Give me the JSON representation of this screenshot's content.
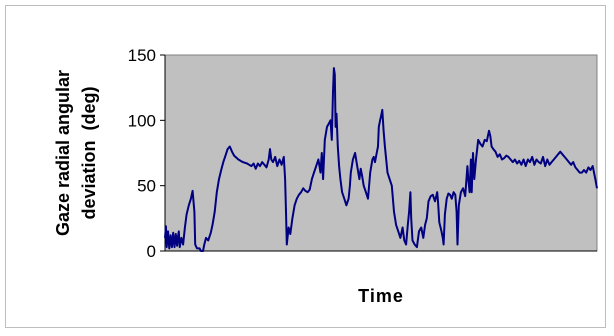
{
  "chart_data": {
    "type": "line",
    "title": "",
    "xlabel": "Time",
    "ylabel_line1": "Gaze radial angular",
    "ylabel_line2": "deviation  (deg)",
    "ylim": [
      0,
      150
    ],
    "yticks": [
      "0",
      "50",
      "100",
      "150"
    ],
    "grid": false,
    "legend": "none",
    "series": [
      {
        "color": "#000080",
        "x_range": [
          0,
          100
        ],
        "points": [
          [
            0.0,
            10
          ],
          [
            0.2,
            19
          ],
          [
            0.4,
            3
          ],
          [
            0.7,
            15
          ],
          [
            1.0,
            2
          ],
          [
            1.3,
            12
          ],
          [
            1.6,
            3
          ],
          [
            1.9,
            14
          ],
          [
            2.2,
            3
          ],
          [
            2.5,
            13
          ],
          [
            2.8,
            4
          ],
          [
            3.0,
            11
          ],
          [
            3.2,
            15
          ],
          [
            3.4,
            3
          ],
          [
            3.8,
            10
          ],
          [
            4.2,
            5
          ],
          [
            4.6,
            18
          ],
          [
            5.0,
            28
          ],
          [
            5.5,
            35
          ],
          [
            6.0,
            40
          ],
          [
            6.4,
            46
          ],
          [
            6.8,
            30
          ],
          [
            7.0,
            5
          ],
          [
            7.4,
            2
          ],
          [
            8.0,
            2
          ],
          [
            8.3,
            0
          ],
          [
            8.8,
            0
          ],
          [
            9.1,
            5
          ],
          [
            9.5,
            10
          ],
          [
            10.0,
            8
          ],
          [
            10.6,
            14
          ],
          [
            11.0,
            20
          ],
          [
            11.5,
            30
          ],
          [
            12.0,
            45
          ],
          [
            12.5,
            55
          ],
          [
            13.0,
            62
          ],
          [
            13.5,
            68
          ],
          [
            14.0,
            73
          ],
          [
            14.5,
            78
          ],
          [
            15.0,
            80
          ],
          [
            15.5,
            76
          ],
          [
            16.0,
            73
          ],
          [
            17.0,
            70
          ],
          [
            18.0,
            68
          ],
          [
            19.0,
            67
          ],
          [
            19.5,
            66
          ],
          [
            20.0,
            65
          ],
          [
            20.5,
            67
          ],
          [
            21.0,
            63
          ],
          [
            21.5,
            67
          ],
          [
            22.0,
            65
          ],
          [
            22.5,
            68
          ],
          [
            23.0,
            66
          ],
          [
            23.5,
            64
          ],
          [
            24.0,
            70
          ],
          [
            24.3,
            78
          ],
          [
            24.6,
            70
          ],
          [
            25.0,
            68
          ],
          [
            25.5,
            72
          ],
          [
            26.0,
            65
          ],
          [
            26.5,
            70
          ],
          [
            27.0,
            66
          ],
          [
            27.5,
            72
          ],
          [
            27.8,
            55
          ],
          [
            28.0,
            30
          ],
          [
            28.2,
            5
          ],
          [
            28.6,
            18
          ],
          [
            29.0,
            13
          ],
          [
            29.5,
            25
          ],
          [
            30.0,
            35
          ],
          [
            30.5,
            40
          ],
          [
            31.0,
            43
          ],
          [
            31.5,
            45
          ],
          [
            32.0,
            48
          ],
          [
            32.5,
            46
          ],
          [
            33.0,
            45
          ],
          [
            33.5,
            47
          ],
          [
            34.0,
            55
          ],
          [
            34.5,
            60
          ],
          [
            35.0,
            65
          ],
          [
            35.5,
            70
          ],
          [
            36.0,
            60
          ],
          [
            36.3,
            75
          ],
          [
            36.6,
            55
          ],
          [
            37.0,
            85
          ],
          [
            37.5,
            95
          ],
          [
            38.0,
            98
          ],
          [
            38.3,
            100
          ],
          [
            38.6,
            85
          ],
          [
            38.9,
            122
          ],
          [
            39.1,
            140
          ],
          [
            39.3,
            135
          ],
          [
            39.5,
            95
          ],
          [
            39.7,
            105
          ],
          [
            40.0,
            80
          ],
          [
            40.3,
            65
          ],
          [
            40.6,
            55
          ],
          [
            41.0,
            45
          ],
          [
            41.5,
            40
          ],
          [
            42.0,
            35
          ],
          [
            42.5,
            40
          ],
          [
            42.8,
            50
          ],
          [
            43.0,
            60
          ],
          [
            43.5,
            70
          ],
          [
            44.0,
            75
          ],
          [
            44.5,
            65
          ],
          [
            45.0,
            55
          ],
          [
            45.3,
            63
          ],
          [
            45.6,
            58
          ],
          [
            46.0,
            50
          ],
          [
            46.5,
            45
          ],
          [
            47.0,
            40
          ],
          [
            47.5,
            60
          ],
          [
            48.0,
            70
          ],
          [
            48.3,
            72
          ],
          [
            48.6,
            68
          ],
          [
            49.0,
            75
          ],
          [
            49.3,
            80
          ],
          [
            49.5,
            95
          ],
          [
            49.8,
            100
          ],
          [
            50.0,
            103
          ],
          [
            50.3,
            108
          ],
          [
            50.6,
            92
          ],
          [
            50.9,
            80
          ],
          [
            51.2,
            70
          ],
          [
            51.5,
            60
          ],
          [
            52.0,
            55
          ],
          [
            52.5,
            50
          ],
          [
            53.0,
            30
          ],
          [
            53.5,
            20
          ],
          [
            54.0,
            15
          ],
          [
            54.5,
            10
          ],
          [
            55.0,
            18
          ],
          [
            55.4,
            8
          ],
          [
            55.8,
            5
          ],
          [
            56.2,
            20
          ],
          [
            56.5,
            30
          ],
          [
            56.8,
            45
          ],
          [
            57.0,
            25
          ],
          [
            57.3,
            8
          ],
          [
            57.8,
            5
          ],
          [
            58.3,
            3
          ],
          [
            58.8,
            15
          ],
          [
            59.3,
            18
          ],
          [
            59.8,
            10
          ],
          [
            60.2,
            20
          ],
          [
            60.6,
            25
          ],
          [
            61.0,
            38
          ],
          [
            61.5,
            42
          ],
          [
            62.0,
            43
          ],
          [
            62.5,
            38
          ],
          [
            63.0,
            45
          ],
          [
            63.2,
            38
          ],
          [
            63.5,
            22
          ],
          [
            64.0,
            15
          ],
          [
            64.3,
            10
          ],
          [
            64.5,
            5
          ],
          [
            64.8,
            28
          ],
          [
            65.2,
            40
          ],
          [
            65.6,
            44
          ],
          [
            66.0,
            43
          ],
          [
            66.4,
            40
          ],
          [
            66.8,
            45
          ],
          [
            67.2,
            43
          ],
          [
            67.5,
            30
          ],
          [
            67.7,
            5
          ],
          [
            68.0,
            35
          ],
          [
            68.5,
            45
          ],
          [
            69.0,
            48
          ],
          [
            69.5,
            42
          ],
          [
            70.0,
            65
          ],
          [
            70.2,
            55
          ],
          [
            70.5,
            45
          ],
          [
            70.8,
            70
          ],
          [
            71.0,
            45
          ],
          [
            71.3,
            75
          ],
          [
            71.6,
            55
          ],
          [
            72.0,
            70
          ],
          [
            72.5,
            85
          ],
          [
            73.0,
            82
          ],
          [
            73.5,
            80
          ],
          [
            74.0,
            85
          ],
          [
            74.5,
            84
          ],
          [
            75.0,
            92
          ],
          [
            75.3,
            88
          ],
          [
            75.6,
            80
          ],
          [
            76.0,
            78
          ],
          [
            76.5,
            76
          ],
          [
            77.0,
            72
          ],
          [
            77.5,
            74
          ],
          [
            78.0,
            70
          ],
          [
            78.5,
            71
          ],
          [
            79.0,
            73
          ],
          [
            79.5,
            72
          ],
          [
            80.0,
            70
          ],
          [
            80.5,
            68
          ],
          [
            81.0,
            70
          ],
          [
            81.5,
            67
          ],
          [
            82.0,
            69
          ],
          [
            82.5,
            66
          ],
          [
            83.0,
            70
          ],
          [
            83.5,
            65
          ],
          [
            84.0,
            70
          ],
          [
            84.5,
            68
          ],
          [
            85.0,
            72
          ],
          [
            85.5,
            66
          ],
          [
            86.0,
            70
          ],
          [
            86.5,
            68
          ],
          [
            87.0,
            67
          ],
          [
            87.5,
            72
          ],
          [
            88.0,
            65
          ],
          [
            88.5,
            70
          ],
          [
            89.0,
            66
          ],
          [
            89.5,
            68
          ],
          [
            90.0,
            70
          ],
          [
            90.5,
            72
          ],
          [
            91.0,
            74
          ],
          [
            91.5,
            76
          ],
          [
            92.0,
            74
          ],
          [
            92.5,
            72
          ],
          [
            93.0,
            70
          ],
          [
            93.5,
            68
          ],
          [
            94.0,
            66
          ],
          [
            94.5,
            68
          ],
          [
            95.0,
            64
          ],
          [
            95.5,
            62
          ],
          [
            96.0,
            60
          ],
          [
            96.5,
            60
          ],
          [
            97.0,
            62
          ],
          [
            97.5,
            60
          ],
          [
            98.0,
            64
          ],
          [
            98.5,
            62
          ],
          [
            99.0,
            65
          ],
          [
            99.3,
            60
          ],
          [
            99.6,
            55
          ],
          [
            100.0,
            48
          ]
        ]
      }
    ]
  }
}
